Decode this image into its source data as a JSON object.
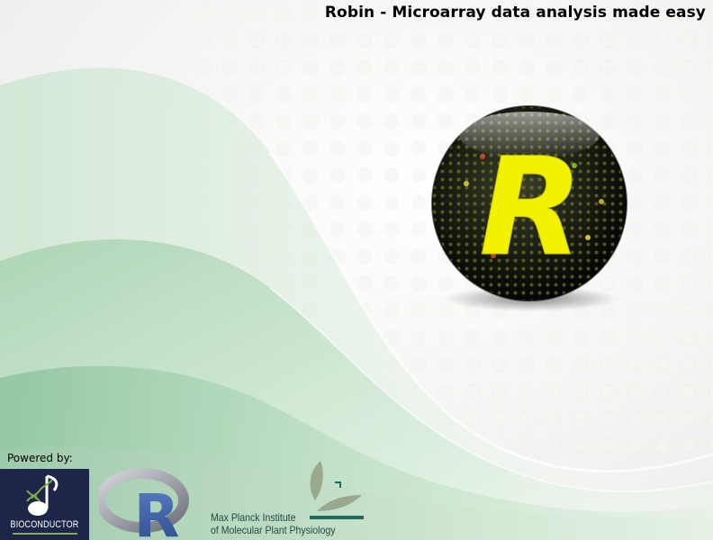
{
  "app": {
    "title": "Robin - Microarray data analysis made easy"
  },
  "logo": {
    "letter": "R",
    "icon": "robin-orb-icon",
    "color": "#f2f200"
  },
  "footer": {
    "powered_by_label": "Powered by:",
    "bioconductor": {
      "label": "BIOCONDUCTOR",
      "icon": "bioconductor-logo-icon"
    },
    "r_project": {
      "letter": "R",
      "icon": "r-project-logo-icon"
    },
    "mpi": {
      "line1": "Max Planck Institute",
      "line2": "of Molecular Plant Physiology",
      "icon": "mpi-leaf-logo-icon"
    }
  },
  "colors": {
    "background": "#f4f4f2",
    "wave_green": "#b9dcc0",
    "wave_dark": "#8fc4a0",
    "title_text": "#000000"
  }
}
